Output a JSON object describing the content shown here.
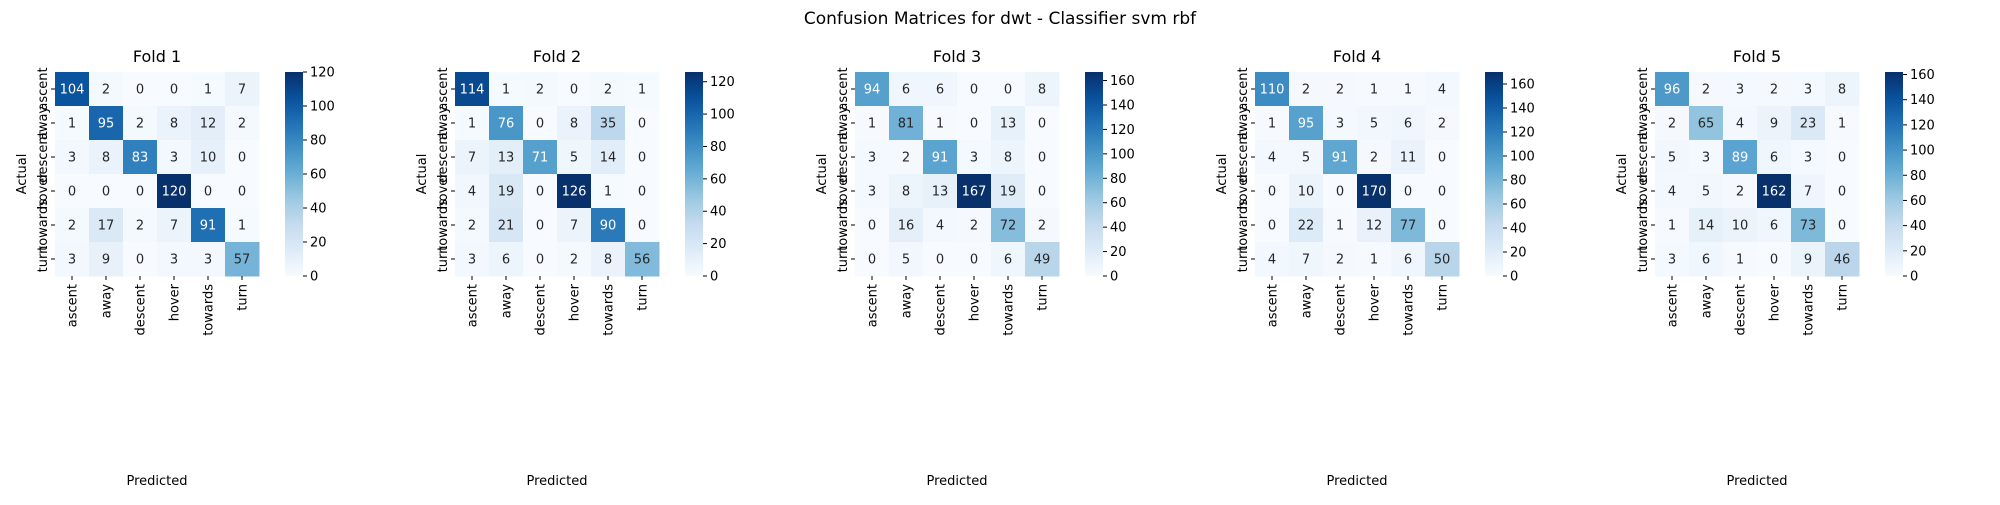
{
  "suptitle": "Confusion Matrices for dwt - Classifier svm rbf",
  "colors": {
    "cmap_low": "#f7fbff",
    "cmap_high": "#08306b",
    "text_dark": "#262626",
    "text_light": "#ffffff"
  },
  "chart_data": [
    {
      "type": "heatmap",
      "title": "Fold 1",
      "xlabel": "Predicted",
      "ylabel": "Actual",
      "x_categories": [
        "ascent",
        "away",
        "descent",
        "hover",
        "towards",
        "turn"
      ],
      "y_categories": [
        "ascent",
        "away",
        "descent",
        "hover",
        "towards",
        "turn"
      ],
      "values": [
        [
          104,
          2,
          0,
          0,
          1,
          7
        ],
        [
          1,
          95,
          2,
          8,
          12,
          2
        ],
        [
          3,
          8,
          83,
          3,
          10,
          0
        ],
        [
          0,
          0,
          0,
          120,
          0,
          0
        ],
        [
          2,
          17,
          2,
          7,
          91,
          1
        ],
        [
          3,
          9,
          0,
          3,
          3,
          57
        ]
      ],
      "vmin": 0,
      "vmax": 120,
      "colorbar_ticks": [
        0,
        20,
        40,
        60,
        80,
        100,
        120
      ]
    },
    {
      "type": "heatmap",
      "title": "Fold 2",
      "xlabel": "Predicted",
      "ylabel": "Actual",
      "x_categories": [
        "ascent",
        "away",
        "descent",
        "hover",
        "towards",
        "turn"
      ],
      "y_categories": [
        "ascent",
        "away",
        "descent",
        "hover",
        "towards",
        "turn"
      ],
      "values": [
        [
          114,
          1,
          2,
          0,
          2,
          1
        ],
        [
          1,
          76,
          0,
          8,
          35,
          0
        ],
        [
          7,
          13,
          71,
          5,
          14,
          0
        ],
        [
          4,
          19,
          0,
          126,
          1,
          0
        ],
        [
          2,
          21,
          0,
          7,
          90,
          0
        ],
        [
          3,
          6,
          0,
          2,
          8,
          56
        ]
      ],
      "vmin": 0,
      "vmax": 126,
      "colorbar_ticks": [
        0,
        20,
        40,
        60,
        80,
        100,
        120
      ]
    },
    {
      "type": "heatmap",
      "title": "Fold 3",
      "xlabel": "Predicted",
      "ylabel": "Actual",
      "x_categories": [
        "ascent",
        "away",
        "descent",
        "hover",
        "towards",
        "turn"
      ],
      "y_categories": [
        "ascent",
        "away",
        "descent",
        "hover",
        "towards",
        "turn"
      ],
      "values": [
        [
          94,
          6,
          6,
          0,
          0,
          8
        ],
        [
          1,
          81,
          1,
          0,
          13,
          0
        ],
        [
          3,
          2,
          91,
          3,
          8,
          0
        ],
        [
          3,
          8,
          13,
          167,
          19,
          0
        ],
        [
          0,
          16,
          4,
          2,
          72,
          2
        ],
        [
          0,
          5,
          0,
          0,
          6,
          49
        ]
      ],
      "vmin": 0,
      "vmax": 167,
      "colorbar_ticks": [
        0,
        20,
        40,
        60,
        80,
        100,
        120,
        140,
        160
      ]
    },
    {
      "type": "heatmap",
      "title": "Fold 4",
      "xlabel": "Predicted",
      "ylabel": "Actual",
      "x_categories": [
        "ascent",
        "away",
        "descent",
        "hover",
        "towards",
        "turn"
      ],
      "y_categories": [
        "ascent",
        "away",
        "descent",
        "hover",
        "towards",
        "turn"
      ],
      "values": [
        [
          110,
          2,
          2,
          1,
          1,
          4
        ],
        [
          1,
          95,
          3,
          5,
          6,
          2
        ],
        [
          4,
          5,
          91,
          2,
          11,
          0
        ],
        [
          0,
          10,
          0,
          170,
          0,
          0
        ],
        [
          0,
          22,
          1,
          12,
          77,
          0
        ],
        [
          4,
          7,
          2,
          1,
          6,
          50
        ]
      ],
      "vmin": 0,
      "vmax": 170,
      "colorbar_ticks": [
        0,
        20,
        40,
        60,
        80,
        100,
        120,
        140,
        160
      ]
    },
    {
      "type": "heatmap",
      "title": "Fold 5",
      "xlabel": "Predicted",
      "ylabel": "Actual",
      "x_categories": [
        "ascent",
        "away",
        "descent",
        "hover",
        "towards",
        "turn"
      ],
      "y_categories": [
        "ascent",
        "away",
        "descent",
        "hover",
        "towards",
        "turn"
      ],
      "values": [
        [
          96,
          2,
          3,
          2,
          3,
          8
        ],
        [
          2,
          65,
          4,
          9,
          23,
          1
        ],
        [
          5,
          3,
          89,
          6,
          3,
          0
        ],
        [
          4,
          5,
          2,
          162,
          7,
          0
        ],
        [
          1,
          14,
          10,
          6,
          73,
          0
        ],
        [
          3,
          6,
          1,
          0,
          9,
          46
        ]
      ],
      "vmin": 0,
      "vmax": 162,
      "colorbar_ticks": [
        0,
        20,
        40,
        60,
        80,
        100,
        120,
        140,
        160
      ]
    }
  ]
}
